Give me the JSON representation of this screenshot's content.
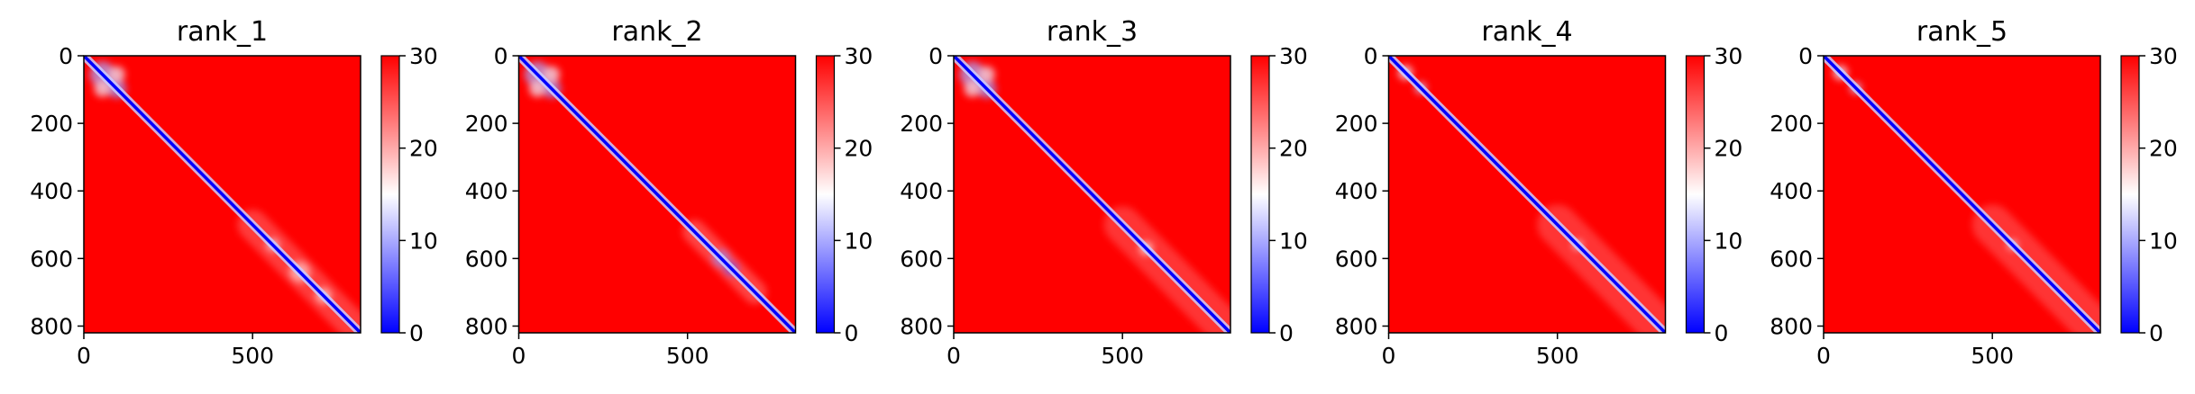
{
  "chart_data": [
    {
      "type": "heatmap",
      "title": "rank_1",
      "x_range": [
        0,
        820
      ],
      "y_range": [
        0,
        820
      ],
      "xticks": [
        "0",
        "500"
      ],
      "yticks": [
        "0",
        "200",
        "400",
        "600",
        "800"
      ],
      "colorbar": {
        "range": [
          0,
          30
        ],
        "ticks": [
          "0",
          "10",
          "20",
          "30"
        ],
        "colormap": "bwr"
      },
      "features": {
        "blobs": [
          {
            "center": [
              55,
              55
            ],
            "radius": 38,
            "value": 10
          },
          {
            "center": [
              98,
              98
            ],
            "radius": 28,
            "value": 9
          },
          {
            "center": [
              55,
              98
            ],
            "radius": 24,
            "value": 14
          },
          {
            "center": [
              98,
              55
            ],
            "radius": 24,
            "value": 14
          },
          {
            "center": [
              560,
              560
            ],
            "radius": 18,
            "value": 14
          },
          {
            "center": [
              640,
              640
            ],
            "radius": 30,
            "value": 17
          },
          {
            "center": [
              710,
              710
            ],
            "radius": 22,
            "value": 16
          }
        ],
        "bands": [
          {
            "from": 500,
            "to": 820,
            "width": 90,
            "value": 22
          }
        ]
      }
    },
    {
      "type": "heatmap",
      "title": "rank_2",
      "x_range": [
        0,
        820
      ],
      "y_range": [
        0,
        820
      ],
      "xticks": [
        "0",
        "500"
      ],
      "yticks": [
        "0",
        "200",
        "400",
        "600",
        "800"
      ],
      "colorbar": {
        "range": [
          0,
          30
        ],
        "ticks": [
          "0",
          "10",
          "20",
          "30"
        ],
        "colormap": "bwr"
      },
      "features": {
        "blobs": [
          {
            "center": [
              55,
              55
            ],
            "radius": 38,
            "value": 10
          },
          {
            "center": [
              98,
              98
            ],
            "radius": 28,
            "value": 9
          },
          {
            "center": [
              55,
              98
            ],
            "radius": 24,
            "value": 14
          },
          {
            "center": [
              98,
              55
            ],
            "radius": 24,
            "value": 14
          },
          {
            "center": [
              600,
              600
            ],
            "radius": 26,
            "value": 9
          },
          {
            "center": [
              630,
              630
            ],
            "radius": 22,
            "value": 6
          }
        ],
        "bands": [
          {
            "from": 520,
            "to": 700,
            "width": 70,
            "value": 21
          }
        ]
      }
    },
    {
      "type": "heatmap",
      "title": "rank_3",
      "x_range": [
        0,
        820
      ],
      "y_range": [
        0,
        820
      ],
      "xticks": [
        "0",
        "500"
      ],
      "yticks": [
        "0",
        "200",
        "400",
        "600",
        "800"
      ],
      "colorbar": {
        "range": [
          0,
          30
        ],
        "ticks": [
          "0",
          "10",
          "20",
          "30"
        ],
        "colormap": "bwr"
      },
      "features": {
        "blobs": [
          {
            "center": [
              55,
              55
            ],
            "radius": 38,
            "value": 10
          },
          {
            "center": [
              98,
              98
            ],
            "radius": 28,
            "value": 9
          },
          {
            "center": [
              55,
              98
            ],
            "radius": 24,
            "value": 14
          },
          {
            "center": [
              98,
              55
            ],
            "radius": 24,
            "value": 14
          },
          {
            "center": [
              570,
              570
            ],
            "radius": 18,
            "value": 15
          }
        ],
        "bands": [
          {
            "from": 500,
            "to": 820,
            "width": 110,
            "value": 23
          }
        ]
      }
    },
    {
      "type": "heatmap",
      "title": "rank_4",
      "x_range": [
        0,
        820
      ],
      "y_range": [
        0,
        820
      ],
      "xticks": [
        "0",
        "500"
      ],
      "yticks": [
        "0",
        "200",
        "400",
        "600",
        "800"
      ],
      "colorbar": {
        "range": [
          0,
          30
        ],
        "ticks": [
          "0",
          "10",
          "20",
          "30"
        ],
        "colormap": "bwr"
      },
      "features": {
        "blobs": [
          {
            "center": [
              50,
              50
            ],
            "radius": 22,
            "value": 14
          },
          {
            "center": [
              95,
              95
            ],
            "radius": 18,
            "value": 12
          },
          {
            "center": [
              560,
              560
            ],
            "radius": 14,
            "value": 14
          }
        ],
        "bands": [
          {
            "from": 500,
            "to": 820,
            "width": 120,
            "value": 23
          }
        ]
      }
    },
    {
      "type": "heatmap",
      "title": "rank_5",
      "x_range": [
        0,
        820
      ],
      "y_range": [
        0,
        820
      ],
      "xticks": [
        "0",
        "500"
      ],
      "yticks": [
        "0",
        "200",
        "400",
        "600",
        "800"
      ],
      "colorbar": {
        "range": [
          0,
          30
        ],
        "ticks": [
          "0",
          "10",
          "20",
          "30"
        ],
        "colormap": "bwr"
      },
      "features": {
        "blobs": [
          {
            "center": [
              50,
              50
            ],
            "radius": 22,
            "value": 14
          },
          {
            "center": [
              95,
              95
            ],
            "radius": 18,
            "value": 12
          },
          {
            "center": [
              560,
              560
            ],
            "radius": 14,
            "value": 14
          }
        ],
        "bands": [
          {
            "from": 500,
            "to": 820,
            "width": 120,
            "value": 23
          }
        ]
      }
    }
  ]
}
